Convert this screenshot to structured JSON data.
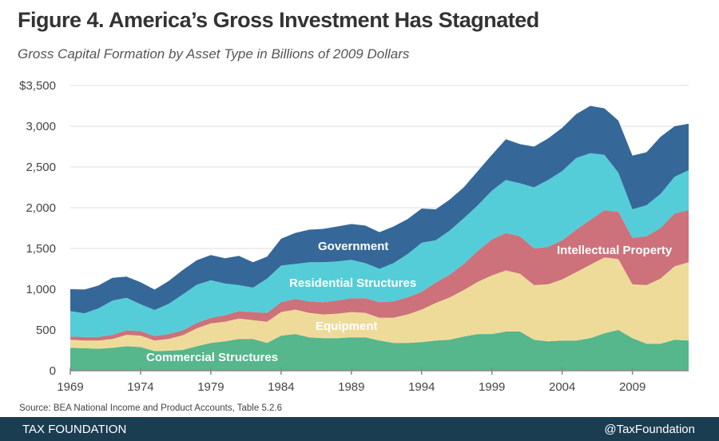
{
  "header": {
    "title": "Figure 4. America’s Gross Investment Has Stagnated",
    "subtitle": "Gross Capital Formation by Asset Type in Billions of 2009 Dollars"
  },
  "footer": {
    "source": "Source: BEA National Income and Product Accounts, Table 5.2.6",
    "brand": "TAX FOUNDATION",
    "handle": "@TaxFoundation",
    "background_color": "#1b3d52"
  },
  "chart_data": {
    "type": "area",
    "stacked": true,
    "title": "Figure 4. America’s Gross Investment Has Stagnated",
    "subtitle": "Gross Capital Formation by Asset Type in Billions of 2009 Dollars",
    "xlabel": "",
    "ylabel": "",
    "ylim": [
      0,
      3500
    ],
    "xlim": [
      1969,
      2013
    ],
    "y_ticks": [
      0,
      500,
      1000,
      1500,
      2000,
      2500,
      3000,
      3500
    ],
    "y_tick_labels": [
      "0",
      "500",
      "1,000",
      "1,500",
      "2,000",
      "2,500",
      "3,000",
      "$3,500"
    ],
    "x_ticks": [
      1969,
      1974,
      1979,
      1984,
      1989,
      1994,
      1999,
      2004,
      2009
    ],
    "x_tick_labels": [
      "1969",
      "1974",
      "1979",
      "1984",
      "1989",
      "1994",
      "1999",
      "2004",
      "2009"
    ],
    "grid": true,
    "legend": "inline-labels",
    "x": [
      1969,
      1970,
      1971,
      1972,
      1973,
      1974,
      1975,
      1976,
      1977,
      1978,
      1979,
      1980,
      1981,
      1982,
      1983,
      1984,
      1985,
      1986,
      1987,
      1988,
      1989,
      1990,
      1991,
      1992,
      1993,
      1994,
      1995,
      1996,
      1997,
      1998,
      1999,
      2000,
      2001,
      2002,
      2003,
      2004,
      2005,
      2006,
      2007,
      2008,
      2009,
      2010,
      2011,
      2012,
      2013
    ],
    "series": [
      {
        "name": "Commercial Structures",
        "color": "#56b68c",
        "values": [
          280,
          275,
          270,
          280,
          300,
          290,
          240,
          245,
          255,
          300,
          340,
          360,
          390,
          390,
          340,
          430,
          450,
          410,
          400,
          400,
          410,
          410,
          370,
          340,
          340,
          350,
          370,
          380,
          420,
          450,
          450,
          480,
          480,
          380,
          360,
          370,
          370,
          400,
          460,
          500,
          400,
          330,
          330,
          380,
          370
        ]
      },
      {
        "name": "Equipment",
        "color": "#eedb9a",
        "values": [
          100,
          95,
          100,
          110,
          140,
          140,
          130,
          145,
          180,
          220,
          240,
          240,
          250,
          230,
          260,
          290,
          300,
          300,
          290,
          300,
          310,
          300,
          280,
          310,
          350,
          400,
          460,
          520,
          570,
          640,
          720,
          750,
          710,
          670,
          700,
          750,
          840,
          900,
          930,
          870,
          660,
          720,
          800,
          900,
          960
        ]
      },
      {
        "name": "Intellectual Property",
        "color": "#cd717a",
        "values": [
          40,
          45,
          45,
          50,
          55,
          55,
          55,
          60,
          60,
          65,
          70,
          80,
          90,
          100,
          110,
          120,
          130,
          140,
          150,
          160,
          170,
          180,
          190,
          200,
          210,
          220,
          250,
          280,
          320,
          380,
          440,
          460,
          460,
          450,
          460,
          480,
          520,
          550,
          580,
          580,
          570,
          600,
          620,
          650,
          640
        ]
      },
      {
        "name": "Residential Structures",
        "color": "#55cdd8",
        "values": [
          310,
          290,
          350,
          420,
          400,
          330,
          320,
          370,
          440,
          470,
          460,
          390,
          320,
          300,
          420,
          450,
          430,
          480,
          490,
          480,
          470,
          430,
          410,
          470,
          530,
          600,
          520,
          540,
          560,
          560,
          600,
          650,
          650,
          750,
          820,
          850,
          880,
          820,
          680,
          480,
          350,
          380,
          420,
          450,
          490
        ]
      },
      {
        "name": "Government",
        "color": "#356898",
        "values": [
          270,
          290,
          280,
          280,
          260,
          270,
          250,
          280,
          300,
          300,
          310,
          310,
          360,
          310,
          270,
          330,
          380,
          400,
          410,
          430,
          440,
          460,
          450,
          450,
          430,
          420,
          380,
          380,
          380,
          420,
          440,
          500,
          480,
          500,
          510,
          530,
          540,
          580,
          570,
          640,
          660,
          650,
          700,
          620,
          570
        ]
      }
    ],
    "annotations": [
      {
        "text": "Government",
        "series": "Government"
      },
      {
        "text": "Residential Structures",
        "series": "Residential Structures"
      },
      {
        "text": "Intellectual Property",
        "series": "Intellectual Property"
      },
      {
        "text": "Equipment",
        "series": "Equipment"
      },
      {
        "text": "Commercial Structures",
        "series": "Commercial Structures"
      }
    ]
  }
}
